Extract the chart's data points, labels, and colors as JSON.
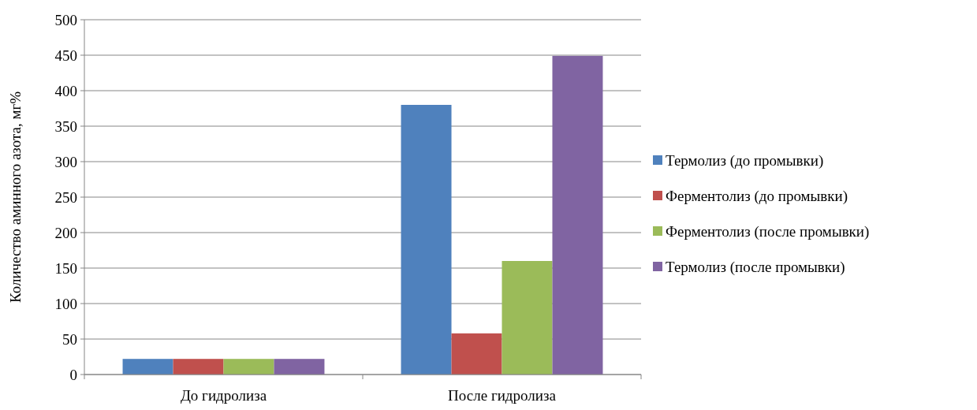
{
  "chart_data": {
    "type": "bar",
    "ylabel": "Количество аминного азота, мг%",
    "categories": [
      "До гидролиза",
      "После гидролиза"
    ],
    "series": [
      {
        "name": "Термолиз (до промывки)",
        "color": "#4f81bd",
        "values": [
          22,
          380
        ]
      },
      {
        "name": "Ферментолиз (до промывки)",
        "color": "#c0504d",
        "values": [
          22,
          58
        ]
      },
      {
        "name": "Ферментолиз (после промывки)",
        "color": "#9bbb59",
        "values": [
          22,
          160
        ]
      },
      {
        "name": "Термолиз (после промывки)",
        "color": "#8064a2",
        "values": [
          22,
          449
        ]
      }
    ],
    "ylim": [
      0,
      500
    ],
    "yticks": [
      0,
      50,
      100,
      150,
      200,
      250,
      300,
      350,
      400,
      450,
      500
    ],
    "grid": "y",
    "legend": "right"
  }
}
